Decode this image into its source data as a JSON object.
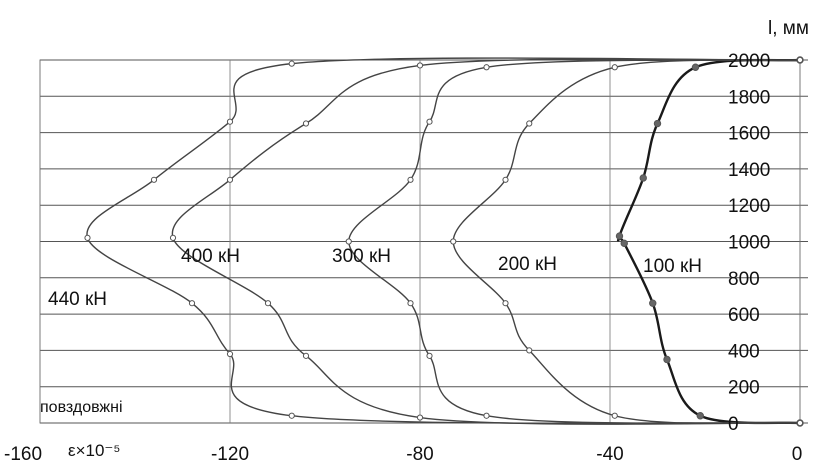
{
  "chart_data": {
    "type": "line",
    "title": "",
    "xlabel": "ε×10⁻⁵",
    "ylabel": "l, мм",
    "xlim": [
      -160,
      0
    ],
    "ylim": [
      0,
      2000
    ],
    "grid": true,
    "x_ticks": [
      "-160",
      "-120",
      "-80",
      "-40",
      "0"
    ],
    "x_tick_values": [
      -160,
      -120,
      -80,
      -40,
      0
    ],
    "y_ticks": [
      "0",
      "200",
      "400",
      "600",
      "800",
      "1000",
      "1200",
      "1400",
      "1600",
      "1800",
      "2000"
    ],
    "y_tick_values": [
      0,
      200,
      400,
      600,
      800,
      1000,
      1200,
      1400,
      1600,
      1800,
      2000
    ],
    "annotations": [
      "повздовжні"
    ],
    "series": [
      {
        "name": "100 кН",
        "color": "#1a1a1a",
        "points": [
          [
            0,
            0
          ],
          [
            -21,
            40
          ],
          [
            -28,
            350
          ],
          [
            -31,
            660
          ],
          [
            -37,
            990
          ],
          [
            -38,
            1030
          ],
          [
            -33,
            1350
          ],
          [
            -30,
            1650
          ],
          [
            -22,
            1960
          ],
          [
            0,
            2000
          ]
        ]
      },
      {
        "name": "200 кН",
        "color": "#444444",
        "points": [
          [
            0,
            0
          ],
          [
            -39,
            40
          ],
          [
            -57,
            400
          ],
          [
            -62,
            660
          ],
          [
            -73,
            1000
          ],
          [
            -62,
            1340
          ],
          [
            -57,
            1650
          ],
          [
            -39,
            1960
          ],
          [
            0,
            2000
          ]
        ]
      },
      {
        "name": "300 кН",
        "color": "#444444",
        "points": [
          [
            0,
            0
          ],
          [
            -66,
            40
          ],
          [
            -78,
            370
          ],
          [
            -82,
            660
          ],
          [
            -95,
            1000
          ],
          [
            -82,
            1340
          ],
          [
            -78,
            1660
          ],
          [
            -66,
            1960
          ],
          [
            0,
            2000
          ]
        ]
      },
      {
        "name": "400 кН",
        "color": "#444444",
        "points": [
          [
            0,
            0
          ],
          [
            -80,
            30
          ],
          [
            -104,
            370
          ],
          [
            -112,
            660
          ],
          [
            -132,
            1020
          ],
          [
            -120,
            1340
          ],
          [
            -104,
            1650
          ],
          [
            -80,
            1970
          ],
          [
            0,
            2000
          ]
        ]
      },
      {
        "name": "440 кН",
        "color": "#444444",
        "points": [
          [
            0,
            0
          ],
          [
            -107,
            40
          ],
          [
            -120,
            380
          ],
          [
            -128,
            660
          ],
          [
            -150,
            1020
          ],
          [
            -136,
            1340
          ],
          [
            -120,
            1660
          ],
          [
            -107,
            1980
          ],
          [
            0,
            2000
          ]
        ]
      }
    ]
  }
}
